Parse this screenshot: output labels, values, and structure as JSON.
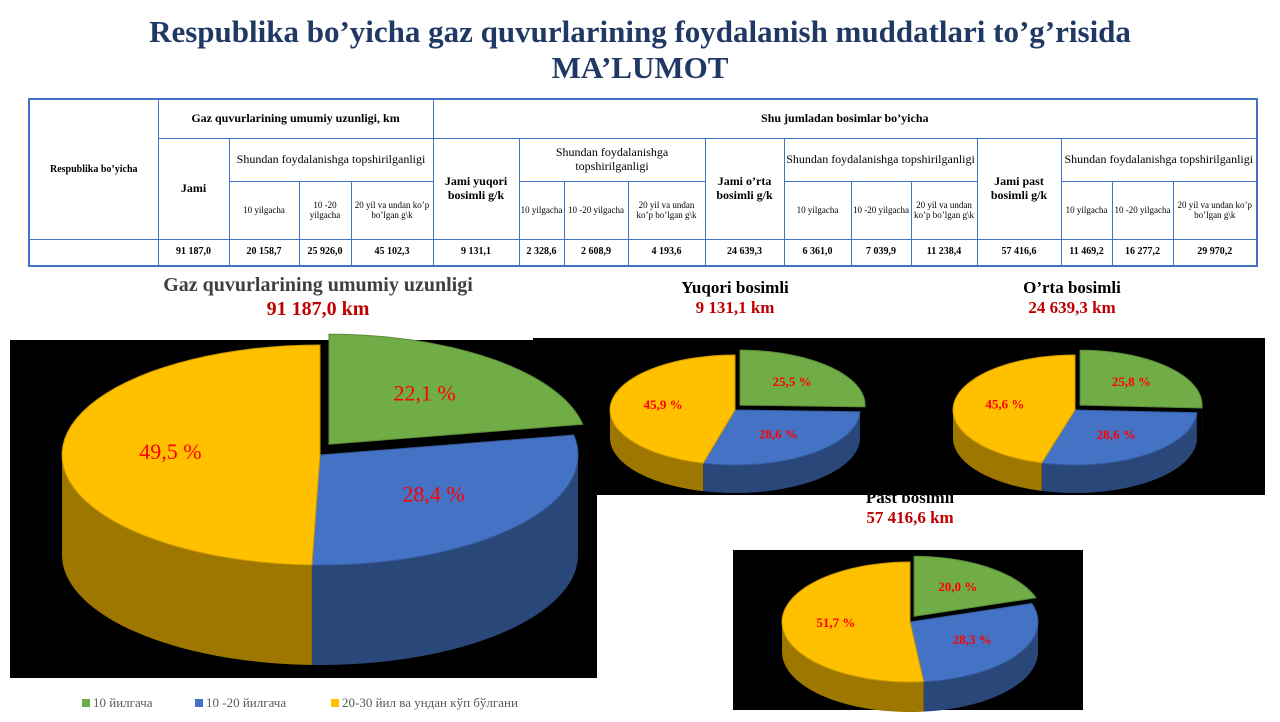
{
  "title": "Respublika bo’yicha gaz quvurlarining foydalanish muddatlari to’g’risida",
  "subtitle": "MA’LUMOT",
  "table": {
    "row_header": "Respublika bo’yicha",
    "group_total": "Gaz quvurlarining umumiy uzunligi, km",
    "group_pressure": "Shu jumladan bosimlar bo’yicha",
    "sections": [
      {
        "total": "Jami",
        "subtitle": "Shundan foydalanishga topshirilganligi",
        "columns": [
          "10 yilgacha",
          "10 -20 yilgacha",
          "20 yil va undan ko’p bo’lgan g\\k"
        ],
        "values": [
          "91 187,0",
          "20 158,7",
          "25 926,0",
          "45 102,3"
        ]
      },
      {
        "total": "Jami yuqori bosimli g/k",
        "subtitle": "Shundan foydalanishga topshirilganligi",
        "columns": [
          "10 yilgacha",
          "10 -20 yilgacha",
          "20 yil va undan ko’p bo’lgan g\\k"
        ],
        "values": [
          "9 131,1",
          "2 328,6",
          "2 608,9",
          "4 193,6"
        ]
      },
      {
        "total": "Jami o’rta bosimli g/k",
        "subtitle": "Shundan foydalanishga topshirilganligi",
        "columns": [
          "10 yilgacha",
          "10 -20 yilgacha",
          "20 yil va undan ko’p bo’lgan g\\k"
        ],
        "values": [
          "24 639,3",
          "6 361,0",
          "7 039,9",
          "11 238,4"
        ]
      },
      {
        "total": "Jami past bosimli g/k",
        "subtitle": "Shundan foydalanishga topshirilganligi",
        "columns": [
          "10 yilgacha",
          "10 -20 yilgacha",
          "20 yil va undan ko’p bo’lgan g\\k"
        ],
        "values": [
          "57 416,6",
          "11 469,2",
          "16 277,2",
          "29 970,2"
        ]
      }
    ]
  },
  "chart_data": [
    {
      "type": "pie",
      "title": "Gaz quvurlarining umumiy uzunligi",
      "subtitle": "91 187,0 km",
      "categories": [
        "10 йилгача",
        "10 -20 йилгача",
        "20-30 йил ва ундан кўп бўлгани"
      ],
      "values": [
        22.1,
        28.4,
        49.5
      ],
      "value_labels": [
        "22,1 %",
        "28,4 %",
        "49,5 %"
      ],
      "colors": [
        "#70ad47",
        "#4472c4",
        "#ffc000"
      ]
    },
    {
      "type": "pie",
      "title": "Yuqori bosimli",
      "subtitle": "9 131,1 km",
      "values": [
        25.5,
        28.6,
        45.9
      ],
      "value_labels": [
        "25,5 %",
        "28,6 %",
        "45,9 %"
      ],
      "colors": [
        "#70ad47",
        "#4472c4",
        "#ffc000"
      ]
    },
    {
      "type": "pie",
      "title": "O’rta bosimli",
      "subtitle": "24 639,3 km",
      "values": [
        25.8,
        28.6,
        45.6
      ],
      "value_labels": [
        "25,8 %",
        "28,6 %",
        "45,6 %"
      ],
      "colors": [
        "#70ad47",
        "#4472c4",
        "#ffc000"
      ]
    },
    {
      "type": "pie",
      "title": "Past bosimli",
      "subtitle": "57 416,6 km",
      "values": [
        20.0,
        28.3,
        51.7
      ],
      "value_labels": [
        "20,0 %",
        "28,3 %",
        "51,7 %"
      ],
      "colors": [
        "#70ad47",
        "#4472c4",
        "#ffc000"
      ]
    }
  ]
}
